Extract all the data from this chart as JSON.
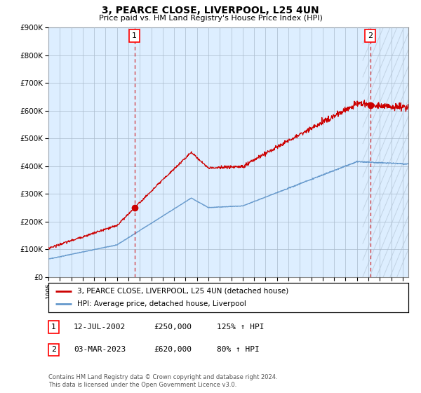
{
  "title": "3, PEARCE CLOSE, LIVERPOOL, L25 4UN",
  "subtitle": "Price paid vs. HM Land Registry's House Price Index (HPI)",
  "legend_line1": "3, PEARCE CLOSE, LIVERPOOL, L25 4UN (detached house)",
  "legend_line2": "HPI: Average price, detached house, Liverpool",
  "annotation1": {
    "num": "1",
    "date": "12-JUL-2002",
    "price": "£250,000",
    "hpi": "125% ↑ HPI"
  },
  "annotation2": {
    "num": "2",
    "date": "03-MAR-2023",
    "price": "£620,000",
    "hpi": "80% ↑ HPI"
  },
  "footnote": "Contains HM Land Registry data © Crown copyright and database right 2024.\nThis data is licensed under the Open Government Licence v3.0.",
  "sale1_year": 2002.535,
  "sale1_price": 250000,
  "sale2_year": 2023.163,
  "sale2_price": 620000,
  "hpi_line_color": "#6699cc",
  "property_line_color": "#cc0000",
  "vline_color": "#cc0000",
  "plot_bg_color": "#ddeeff",
  "background_color": "#ffffff",
  "grid_color": "#aabbcc",
  "ylim": [
    0,
    900000
  ],
  "xlim_start": 1995.0,
  "xlim_end": 2026.5,
  "ylabel_ticks": [
    0,
    100000,
    200000,
    300000,
    400000,
    500000,
    600000,
    700000,
    800000,
    900000
  ],
  "hatch_start": 2022.5,
  "hatch_color": "#bbccdd"
}
